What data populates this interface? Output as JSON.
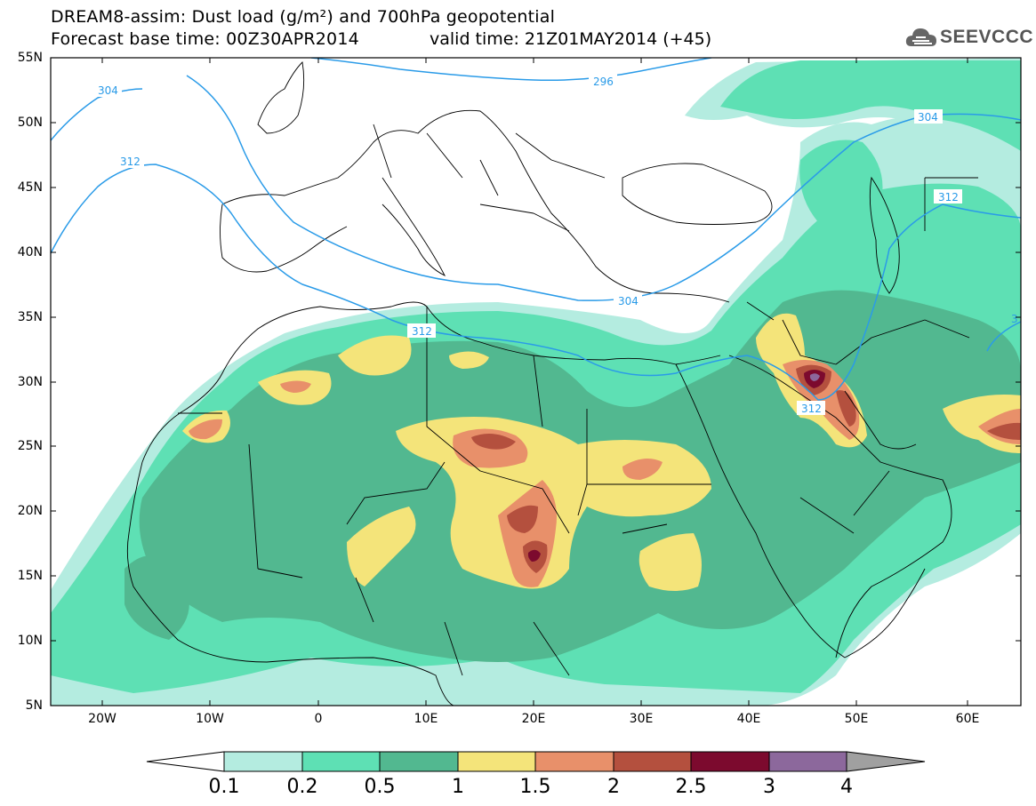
{
  "header": {
    "title": "DREAM8-assim: Dust load (g/m²) and 700hPa geopotential",
    "base_time": "Forecast base time: 00Z30APR2014",
    "valid_time": "valid time: 21Z01MAY2014 (+45)",
    "logo_text": "SEEVCCC"
  },
  "axes": {
    "lat_labels": [
      "55N",
      "50N",
      "45N",
      "40N",
      "35N",
      "30N",
      "25N",
      "20N",
      "15N",
      "10N",
      "5N"
    ],
    "lon_labels": [
      "20W",
      "10W",
      "0",
      "10E",
      "20E",
      "30E",
      "40E",
      "50E",
      "60E"
    ]
  },
  "contour_labels": [
    "304",
    "312",
    "296",
    "304",
    "312",
    "304",
    "312",
    "312",
    "3"
  ],
  "colorbar": {
    "labels": [
      "0.1",
      "0.2",
      "0.5",
      "1",
      "1.5",
      "2",
      "2.5",
      "3",
      "4"
    ],
    "colors": [
      "#b4ece0",
      "#5ee0b4",
      "#52b890",
      "#f4e47a",
      "#e8906a",
      "#b4503e",
      "#7c0a2e",
      "#8c689c"
    ],
    "low_color": "#ffffff",
    "high_color": "#a0a0a0"
  },
  "colors": {
    "contour_line": "#2a9be8",
    "border_line": "#000000"
  }
}
